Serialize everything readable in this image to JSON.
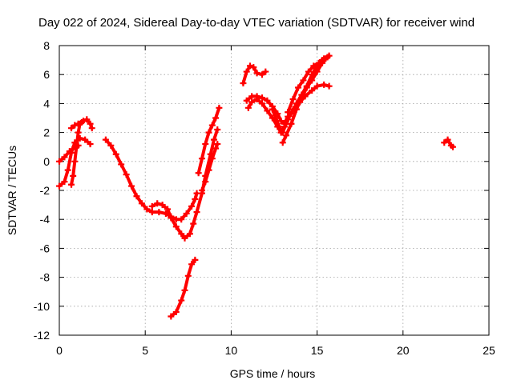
{
  "chart_data": {
    "type": "scatter",
    "title": "Day 022 of 2024, Sidereal Day-to-day VTEC variation (SDTVAR) for receiver wind",
    "xlabel": "GPS time / hours",
    "ylabel": "SDTVAR / TECUs",
    "xlim": [
      0,
      25
    ],
    "ylim": [
      -12,
      8
    ],
    "xticks": [
      "0",
      "5",
      "10",
      "15",
      "20",
      "25"
    ],
    "yticks": [
      "8",
      "6",
      "4",
      "2",
      "0",
      "-2",
      "-4",
      "-6",
      "-8",
      "-10",
      "-12"
    ],
    "grid": true,
    "marker_color": "#ff0000",
    "segments": [
      {
        "name": "seg-a",
        "points": [
          [
            0.0,
            -1.7
          ],
          [
            0.3,
            -1.4
          ],
          [
            0.5,
            -0.6
          ],
          [
            0.7,
            0.6
          ],
          [
            0.9,
            1.3
          ],
          [
            1.2,
            1.6
          ],
          [
            1.5,
            1.5
          ],
          [
            1.8,
            1.2
          ]
        ]
      },
      {
        "name": "seg-b",
        "points": [
          [
            0.0,
            0.0
          ],
          [
            0.3,
            0.3
          ],
          [
            0.6,
            0.7
          ],
          [
            0.9,
            1.0
          ],
          [
            1.1,
            1.1
          ]
        ]
      },
      {
        "name": "seg-c",
        "points": [
          [
            0.7,
            -1.6
          ],
          [
            0.8,
            -1.0
          ],
          [
            0.9,
            0.0
          ],
          [
            1.0,
            1.0
          ],
          [
            1.1,
            2.0
          ],
          [
            1.2,
            2.6
          ],
          [
            1.4,
            2.8
          ],
          [
            1.6,
            2.9
          ],
          [
            1.8,
            2.6
          ],
          [
            1.9,
            2.3
          ]
        ]
      },
      {
        "name": "seg-d",
        "points": [
          [
            0.7,
            2.3
          ],
          [
            0.9,
            2.5
          ],
          [
            1.1,
            2.6
          ],
          [
            1.3,
            2.7
          ]
        ]
      },
      {
        "name": "seg-e",
        "points": [
          [
            2.7,
            1.5
          ],
          [
            3.0,
            1.1
          ],
          [
            3.3,
            0.5
          ],
          [
            3.6,
            -0.2
          ],
          [
            3.9,
            -0.9
          ],
          [
            4.2,
            -1.7
          ],
          [
            4.5,
            -2.4
          ],
          [
            4.8,
            -2.9
          ],
          [
            5.1,
            -3.3
          ],
          [
            5.4,
            -3.5
          ],
          [
            5.8,
            -3.5
          ],
          [
            6.2,
            -3.6
          ],
          [
            6.5,
            -3.8
          ],
          [
            6.8,
            -4.0
          ],
          [
            7.1,
            -4.0
          ],
          [
            7.4,
            -3.6
          ],
          [
            7.7,
            -3.1
          ],
          [
            7.9,
            -2.6
          ],
          [
            8.0,
            -2.2
          ]
        ]
      },
      {
        "name": "seg-f",
        "points": [
          [
            5.4,
            -3.1
          ],
          [
            5.7,
            -2.9
          ],
          [
            6.0,
            -3.0
          ],
          [
            6.3,
            -3.3
          ],
          [
            6.5,
            -3.9
          ],
          [
            6.8,
            -4.5
          ],
          [
            7.1,
            -5.0
          ],
          [
            7.3,
            -5.3
          ],
          [
            7.6,
            -5.0
          ],
          [
            7.8,
            -4.3
          ],
          [
            8.0,
            -3.5
          ],
          [
            8.3,
            -2.2
          ],
          [
            8.5,
            -1.0
          ],
          [
            8.8,
            0.5
          ],
          [
            9.0,
            1.5
          ],
          [
            9.2,
            2.2
          ]
        ]
      },
      {
        "name": "seg-g",
        "points": [
          [
            6.5,
            -10.7
          ],
          [
            6.8,
            -10.4
          ],
          [
            7.1,
            -9.6
          ],
          [
            7.3,
            -8.9
          ],
          [
            7.5,
            -7.9
          ],
          [
            7.7,
            -7.1
          ],
          [
            7.9,
            -6.8
          ]
        ]
      },
      {
        "name": "seg-h",
        "points": [
          [
            8.1,
            -0.8
          ],
          [
            8.3,
            0.2
          ],
          [
            8.5,
            1.2
          ],
          [
            8.7,
            2.0
          ],
          [
            8.9,
            2.5
          ],
          [
            9.1,
            3.0
          ],
          [
            9.3,
            3.7
          ]
        ]
      },
      {
        "name": "seg-i",
        "points": [
          [
            8.3,
            -2.0
          ],
          [
            8.5,
            -1.4
          ],
          [
            8.7,
            -0.6
          ],
          [
            8.9,
            0.2
          ],
          [
            9.1,
            0.9
          ],
          [
            9.2,
            1.2
          ]
        ]
      },
      {
        "name": "seg-j",
        "points": [
          [
            10.7,
            5.4
          ],
          [
            10.9,
            6.2
          ],
          [
            11.1,
            6.6
          ],
          [
            11.3,
            6.5
          ],
          [
            11.5,
            6.1
          ],
          [
            11.8,
            6.0
          ],
          [
            12.0,
            6.2
          ]
        ]
      },
      {
        "name": "seg-k",
        "points": [
          [
            11.0,
            3.7
          ],
          [
            11.2,
            4.1
          ],
          [
            11.5,
            4.3
          ],
          [
            11.8,
            4.0
          ],
          [
            12.1,
            3.5
          ],
          [
            12.4,
            3.0
          ],
          [
            12.7,
            2.4
          ],
          [
            12.9,
            2.0
          ],
          [
            13.1,
            2.4
          ],
          [
            13.3,
            2.9
          ],
          [
            13.6,
            3.6
          ],
          [
            14.0,
            4.1
          ],
          [
            14.3,
            4.5
          ],
          [
            14.7,
            4.9
          ],
          [
            15.0,
            5.2
          ],
          [
            15.4,
            5.3
          ],
          [
            15.7,
            5.2
          ]
        ]
      },
      {
        "name": "seg-l",
        "points": [
          [
            10.9,
            4.2
          ],
          [
            11.2,
            4.5
          ],
          [
            11.5,
            4.5
          ],
          [
            11.8,
            4.4
          ],
          [
            12.1,
            4.2
          ],
          [
            12.4,
            3.8
          ],
          [
            12.7,
            3.3
          ],
          [
            12.9,
            2.8
          ],
          [
            13.1,
            2.6
          ],
          [
            13.3,
            3.1
          ]
        ]
      },
      {
        "name": "seg-m",
        "points": [
          [
            13.0,
            1.3
          ],
          [
            13.2,
            1.8
          ],
          [
            13.5,
            2.6
          ],
          [
            13.8,
            3.6
          ],
          [
            14.1,
            4.4
          ],
          [
            14.4,
            5.1
          ],
          [
            14.7,
            5.6
          ],
          [
            15.0,
            6.2
          ],
          [
            15.3,
            6.8
          ],
          [
            15.5,
            7.1
          ],
          [
            15.7,
            7.3
          ]
        ]
      },
      {
        "name": "seg-n",
        "points": [
          [
            13.2,
            2.8
          ],
          [
            13.5,
            3.3
          ],
          [
            13.8,
            4.0
          ],
          [
            14.1,
            4.6
          ],
          [
            14.4,
            5.2
          ],
          [
            14.7,
            6.0
          ],
          [
            15.0,
            6.6
          ],
          [
            15.3,
            7.0
          ],
          [
            15.6,
            7.2
          ]
        ]
      },
      {
        "name": "seg-o",
        "points": [
          [
            13.3,
            3.4
          ],
          [
            13.6,
            4.3
          ],
          [
            13.9,
            5.1
          ],
          [
            14.2,
            5.6
          ],
          [
            14.5,
            6.2
          ],
          [
            14.8,
            6.6
          ],
          [
            15.1,
            6.8
          ],
          [
            15.4,
            7.1
          ]
        ]
      },
      {
        "name": "seg-p",
        "points": [
          [
            12.4,
            3.6
          ],
          [
            12.6,
            3.0
          ],
          [
            12.8,
            2.4
          ],
          [
            13.0,
            2.0
          ],
          [
            13.2,
            2.6
          ]
        ]
      },
      {
        "name": "seg-q",
        "points": [
          [
            22.4,
            1.3
          ],
          [
            22.6,
            1.5
          ],
          [
            22.8,
            1.1
          ],
          [
            22.9,
            1.0
          ]
        ]
      }
    ]
  }
}
